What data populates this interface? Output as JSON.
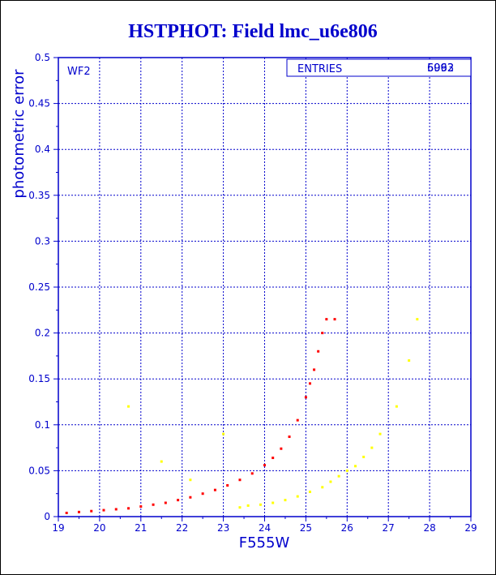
{
  "chart_data": {
    "type": "scatter",
    "title": "HSTPHOT: Field lmc_u6e806",
    "xlabel": "F555W",
    "ylabel": "photometric error",
    "xlim": [
      19,
      29
    ],
    "ylim": [
      0,
      0.5
    ],
    "xticks": [
      "19",
      "20",
      "21",
      "22",
      "23",
      "24",
      "25",
      "26",
      "27",
      "28",
      "29"
    ],
    "yticks": [
      "0",
      "0.05",
      "0.1",
      "0.15",
      "0.2",
      "0.25",
      "0.3",
      "0.35",
      "0.4",
      "0.45",
      "0.5"
    ],
    "grid": true,
    "annotation": "WF2",
    "stats_box": {
      "label": "ENTRIES",
      "values": [
        "5993",
        "6062"
      ]
    },
    "series": [
      {
        "color": "#ff0000",
        "points": [
          [
            19.2,
            0.004
          ],
          [
            19.5,
            0.005
          ],
          [
            19.8,
            0.006
          ],
          [
            20.1,
            0.007
          ],
          [
            20.4,
            0.008
          ],
          [
            20.7,
            0.009
          ],
          [
            21.0,
            0.011
          ],
          [
            21.3,
            0.013
          ],
          [
            21.6,
            0.015
          ],
          [
            21.9,
            0.018
          ],
          [
            22.2,
            0.021
          ],
          [
            22.5,
            0.025
          ],
          [
            22.8,
            0.029
          ],
          [
            23.1,
            0.034
          ],
          [
            23.4,
            0.04
          ],
          [
            23.7,
            0.047
          ],
          [
            24.0,
            0.056
          ],
          [
            24.2,
            0.064
          ],
          [
            24.4,
            0.074
          ],
          [
            24.6,
            0.087
          ],
          [
            24.8,
            0.105
          ],
          [
            25.0,
            0.13
          ],
          [
            25.1,
            0.145
          ],
          [
            25.2,
            0.16
          ],
          [
            25.3,
            0.18
          ],
          [
            25.4,
            0.2
          ],
          [
            25.5,
            0.215
          ],
          [
            25.7,
            0.215
          ]
        ]
      },
      {
        "color": "#ffff00",
        "points": [
          [
            20.7,
            0.12
          ],
          [
            21.5,
            0.06
          ],
          [
            22.2,
            0.04
          ],
          [
            23.0,
            0.09
          ],
          [
            23.4,
            0.01
          ],
          [
            23.6,
            0.012
          ],
          [
            23.9,
            0.013
          ],
          [
            24.2,
            0.015
          ],
          [
            24.5,
            0.018
          ],
          [
            24.8,
            0.022
          ],
          [
            25.1,
            0.027
          ],
          [
            25.4,
            0.032
          ],
          [
            25.6,
            0.038
          ],
          [
            25.8,
            0.044
          ],
          [
            26.0,
            0.05
          ],
          [
            26.2,
            0.055
          ],
          [
            26.4,
            0.065
          ],
          [
            26.6,
            0.075
          ],
          [
            26.8,
            0.09
          ],
          [
            27.2,
            0.12
          ],
          [
            27.5,
            0.17
          ],
          [
            27.7,
            0.215
          ]
        ]
      }
    ]
  }
}
